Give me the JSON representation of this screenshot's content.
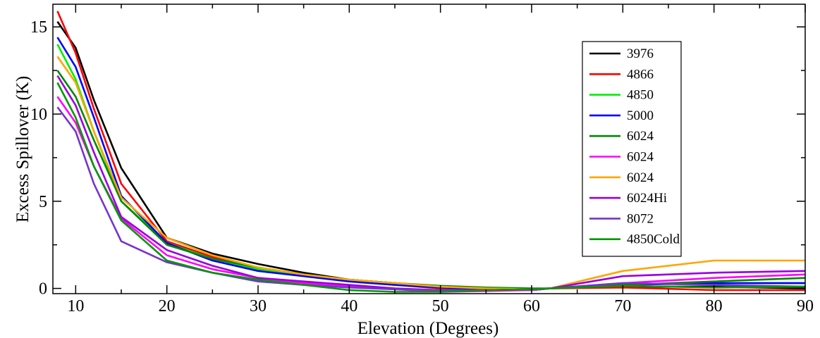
{
  "chart_data": {
    "type": "line",
    "title": "",
    "xlabel": "Elevation (Degrees)",
    "ylabel": "Excess Spillover (K)",
    "xlim": [
      7.5,
      90
    ],
    "ylim": [
      -0.3,
      16.3
    ],
    "x_ticks": [
      10,
      20,
      30,
      40,
      50,
      60,
      70,
      80,
      90
    ],
    "x_tick_labels": [
      "10",
      "20",
      "30",
      "40",
      "50",
      "60",
      "70",
      "80",
      "90"
    ],
    "y_ticks": [
      0,
      5,
      10,
      15
    ],
    "y_tick_labels": [
      "0",
      "5",
      "10",
      "15"
    ],
    "grid": false,
    "legend_position": "upper-right",
    "series": [
      {
        "name": "3976",
        "color": "#000000",
        "x": [
          8,
          10,
          12,
          15,
          20,
          25,
          30,
          35,
          40,
          45,
          50,
          55,
          60,
          62,
          70,
          80,
          90
        ],
        "y": [
          15.3,
          13.8,
          10.8,
          6.9,
          2.9,
          2.0,
          1.4,
          0.9,
          0.5,
          0.3,
          0.1,
          0.0,
          -0.05,
          0.0,
          0.1,
          0.1,
          0.0
        ]
      },
      {
        "name": "4866",
        "color": "#ff0000",
        "x": [
          8,
          10,
          12,
          15,
          20,
          25,
          30,
          35,
          40,
          45,
          50,
          55,
          60,
          62,
          70,
          80,
          90
        ],
        "y": [
          15.9,
          13.5,
          10.3,
          6.0,
          2.7,
          1.8,
          1.2,
          0.8,
          0.5,
          0.2,
          0.0,
          -0.1,
          -0.1,
          0.0,
          0.05,
          -0.1,
          -0.1
        ]
      },
      {
        "name": "4850",
        "color": "#00ee00",
        "x": [
          8,
          10,
          12,
          15,
          20,
          25,
          30,
          35,
          40,
          45,
          50,
          55,
          60,
          62,
          70,
          80,
          90
        ],
        "y": [
          14.0,
          12.0,
          9.0,
          5.0,
          2.6,
          1.7,
          1.1,
          0.7,
          0.4,
          0.2,
          0.05,
          -0.05,
          -0.05,
          0.0,
          0.2,
          0.3,
          0.3
        ]
      },
      {
        "name": "5000",
        "color": "#0000ff",
        "x": [
          8,
          10,
          12,
          15,
          20,
          25,
          30,
          35,
          40,
          45,
          50,
          55,
          60,
          62,
          70,
          80,
          90
        ],
        "y": [
          14.4,
          12.7,
          9.8,
          5.3,
          2.6,
          1.6,
          1.0,
          0.7,
          0.4,
          0.2,
          0.05,
          -0.05,
          -0.1,
          0.0,
          0.2,
          0.3,
          0.3
        ]
      },
      {
        "name": "6024",
        "color": "#008800",
        "x": [
          8,
          10,
          12,
          15,
          20,
          25,
          30,
          35,
          40,
          45,
          50,
          55,
          60,
          62,
          70,
          80,
          90
        ],
        "y": [
          12.5,
          11.0,
          8.5,
          5.0,
          2.5,
          1.7,
          1.2,
          0.8,
          0.5,
          0.3,
          0.15,
          0.05,
          0.0,
          0.0,
          0.2,
          0.4,
          0.6
        ]
      },
      {
        "name": "6024",
        "color": "#ff00ff",
        "x": [
          8,
          10,
          12,
          15,
          20,
          25,
          30,
          35,
          40,
          45,
          50,
          55,
          60,
          62,
          70,
          80,
          90
        ],
        "y": [
          11.0,
          9.5,
          7.0,
          4.0,
          1.9,
          1.1,
          0.6,
          0.3,
          0.1,
          -0.05,
          -0.2,
          -0.15,
          -0.1,
          0.0,
          0.3,
          0.6,
          0.8
        ]
      },
      {
        "name": "6024",
        "color": "#ffa500",
        "x": [
          8,
          10,
          12,
          15,
          20,
          25,
          30,
          35,
          40,
          45,
          50,
          55,
          60,
          62,
          70,
          80,
          90
        ],
        "y": [
          13.3,
          11.8,
          9.0,
          5.2,
          2.9,
          1.9,
          1.2,
          0.8,
          0.5,
          0.3,
          0.1,
          0.0,
          -0.05,
          0.0,
          1.0,
          1.6,
          1.6
        ]
      },
      {
        "name": "6024Hi",
        "color": "#9900dd",
        "x": [
          8,
          10,
          12,
          15,
          20,
          25,
          30,
          35,
          40,
          45,
          50,
          55,
          60,
          62,
          70,
          80,
          90
        ],
        "y": [
          12.2,
          10.5,
          7.8,
          4.1,
          2.2,
          1.3,
          0.6,
          0.4,
          0.2,
          0.0,
          -0.1,
          -0.1,
          -0.05,
          0.0,
          0.7,
          0.9,
          1.0
        ]
      },
      {
        "name": "8072",
        "color": "#7733cc",
        "x": [
          8,
          10,
          12,
          15,
          20,
          25,
          30,
          35,
          40,
          45,
          50,
          55,
          60,
          62,
          70,
          80,
          90
        ],
        "y": [
          10.4,
          9.0,
          6.0,
          2.7,
          1.5,
          0.9,
          0.4,
          0.2,
          0.05,
          -0.05,
          -0.1,
          -0.1,
          -0.05,
          0.0,
          0.3,
          0.2,
          0.1
        ]
      },
      {
        "name": "4850Cold",
        "color": "#009900",
        "x": [
          8,
          10,
          12,
          15,
          20,
          25,
          30,
          35,
          40,
          45,
          50,
          55,
          60,
          62,
          70,
          80,
          90
        ],
        "y": [
          11.8,
          9.8,
          7.0,
          3.9,
          1.6,
          0.9,
          0.5,
          0.2,
          -0.1,
          -0.2,
          -0.2,
          -0.1,
          -0.05,
          0.0,
          0.15,
          0.05,
          0.1
        ]
      }
    ]
  }
}
